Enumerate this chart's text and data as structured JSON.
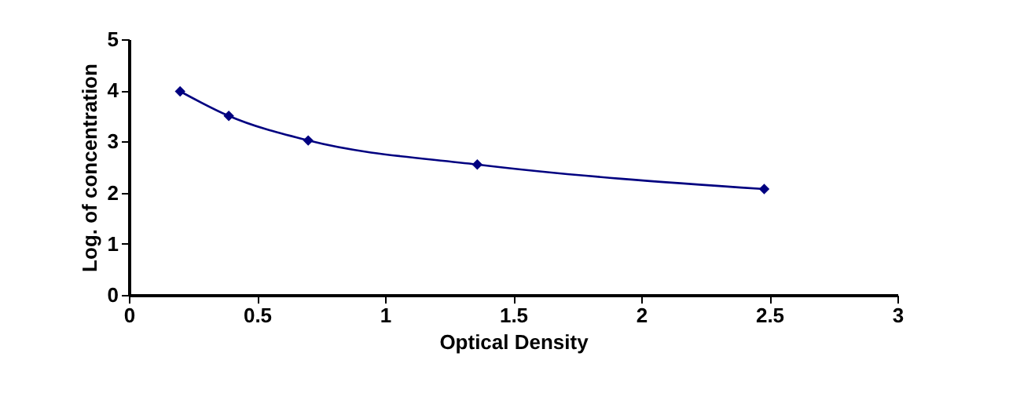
{
  "chart_data": {
    "type": "line",
    "xlabel": "Optical Density",
    "ylabel": "Log. of concentration",
    "x": [
      0.2,
      0.39,
      0.7,
      1.36,
      2.48
    ],
    "series": [
      {
        "color": "#000080",
        "values": [
          3.98,
          3.5,
          3.02,
          2.55,
          2.07
        ]
      }
    ],
    "xlim": [
      0,
      3
    ],
    "xticks": [
      0,
      0.5,
      1,
      1.5,
      2,
      2.5,
      3
    ],
    "ylim": [
      0,
      5
    ],
    "yticks": [
      0,
      1,
      2,
      3,
      4,
      5
    ],
    "marker": "diamond",
    "line_style": "solid"
  }
}
